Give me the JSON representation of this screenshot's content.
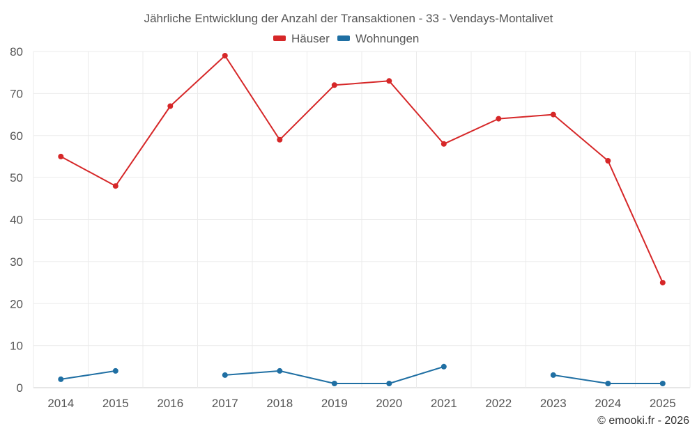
{
  "chart_data": {
    "type": "line",
    "title": "Jährliche Entwicklung der Anzahl der Transaktionen - 33 - Vendays-Montalivet",
    "categories": [
      "2014",
      "2015",
      "2016",
      "2017",
      "2018",
      "2019",
      "2020",
      "2021",
      "2022",
      "2023",
      "2024",
      "2025"
    ],
    "series": [
      {
        "name": "Häuser",
        "color": "#d62728",
        "values": [
          55,
          48,
          67,
          79,
          59,
          72,
          73,
          58,
          64,
          65,
          54,
          25
        ]
      },
      {
        "name": "Wohnungen",
        "color": "#1f6fa3",
        "values": [
          2,
          4,
          null,
          3,
          4,
          1,
          1,
          5,
          null,
          3,
          1,
          1
        ]
      }
    ],
    "ylim": [
      0,
      80
    ],
    "yticks": [
      "0",
      "10",
      "20",
      "30",
      "40",
      "50",
      "60",
      "70",
      "80"
    ],
    "xlabel": "",
    "ylabel": "",
    "grid": true,
    "legend_position": "top-center"
  },
  "credit": "© emooki.fr - 2026"
}
